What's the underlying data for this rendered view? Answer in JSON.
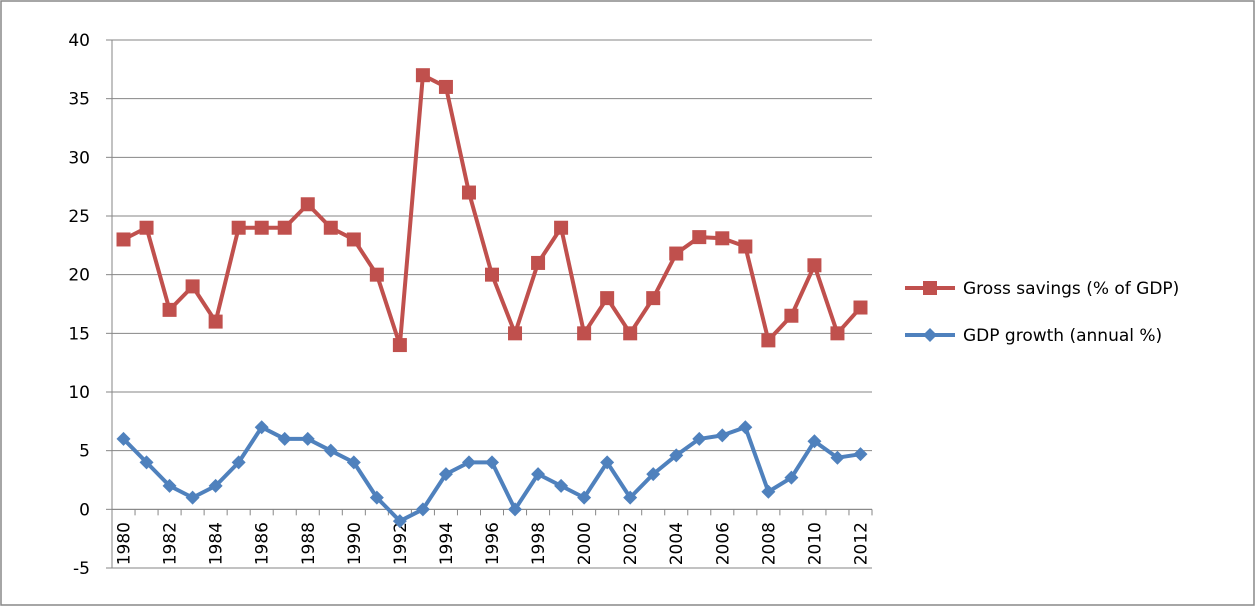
{
  "chart_data": {
    "type": "line",
    "categories": [
      "1980",
      null,
      "1982",
      null,
      "1984",
      null,
      "1986",
      null,
      "1988",
      null,
      "1990",
      null,
      "1992",
      null,
      "1994",
      null,
      "1996",
      null,
      "1998",
      null,
      "2000",
      null,
      "2002",
      null,
      "2004",
      null,
      "2006",
      null,
      "2008",
      null,
      "2010",
      null,
      "2012"
    ],
    "series": [
      {
        "name": "Gross savings (% of GDP)",
        "color": "#c0504d",
        "marker": "square",
        "values": [
          23,
          24,
          17,
          19,
          16,
          24,
          24,
          24,
          26,
          24,
          23,
          20,
          14,
          37,
          36,
          27,
          20,
          15,
          21,
          24,
          15,
          18,
          15,
          18,
          21.8,
          23.2,
          23.1,
          22.4,
          14.4,
          16.5,
          20.8,
          15,
          17.2
        ]
      },
      {
        "name": "GDP growth (annual %)",
        "color": "#4f81bd",
        "marker": "diamond",
        "values": [
          6,
          4,
          2,
          1,
          2,
          4,
          7,
          6,
          6,
          5,
          4,
          1,
          -1,
          0,
          3,
          4,
          4,
          0,
          3,
          2,
          1,
          4,
          1,
          3,
          4.6,
          6,
          6.3,
          7,
          1.5,
          2.7,
          5.8,
          4.4,
          4.7
        ]
      }
    ],
    "ylim": [
      -5,
      40
    ],
    "yticks": [
      -5,
      0,
      5,
      10,
      15,
      20,
      25,
      30,
      35,
      40
    ],
    "grid": true,
    "legend": "right"
  }
}
